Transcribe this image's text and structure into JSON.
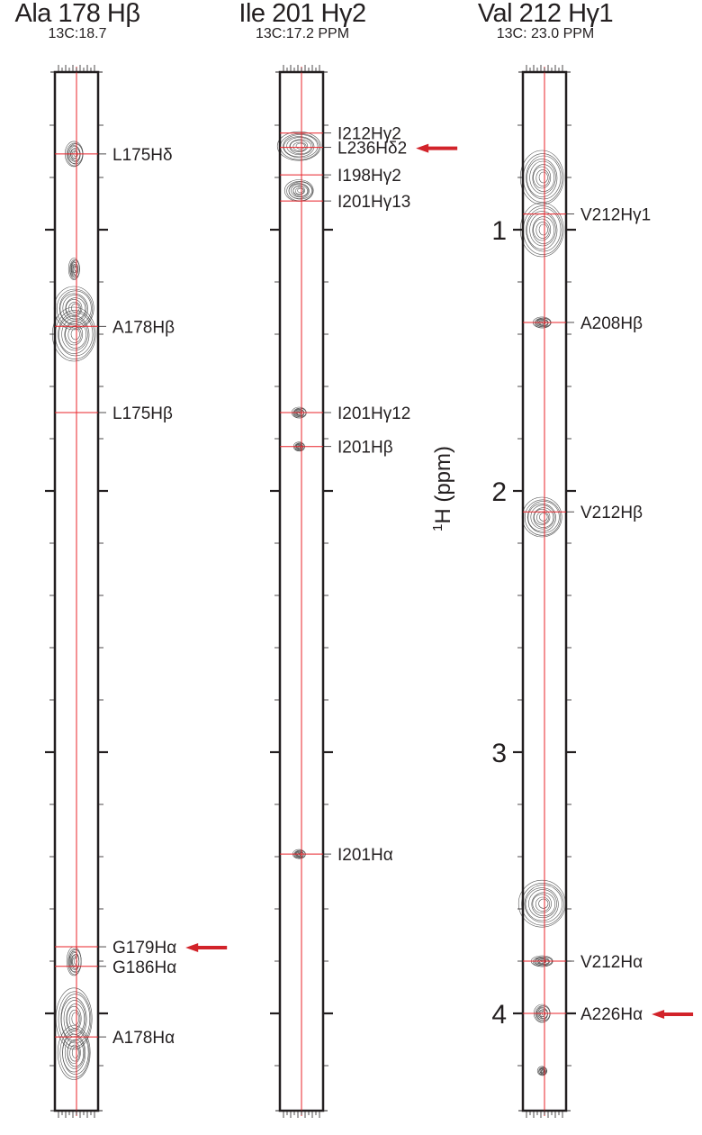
{
  "chart_data": {
    "type": "scatter",
    "ylabel": "1H (ppm)",
    "ylabel_sup": "1",
    "ylabel_main": "H  (ppm)",
    "ylim": [
      0.4,
      4.37
    ],
    "y_inverted": true,
    "y_ticks": [
      "1",
      "2",
      "3",
      "4"
    ],
    "minor_tick_step_ppm": 0.2,
    "colors": {
      "contour": "#555555",
      "reference_line": "#e8232a",
      "arrow": "#d2232a",
      "frame": "#231f20"
    },
    "strips": [
      {
        "title": "Ala 178 Hβ",
        "subtitle": "13C:18.7",
        "peaks": [
          {
            "label": "L175Hδ",
            "ppm": 0.71,
            "arrow": false
          },
          {
            "label": "A178Hβ",
            "ppm": 1.37,
            "arrow": false
          },
          {
            "label": "L175Hβ",
            "ppm": 1.7,
            "arrow": false
          },
          {
            "label": "G179Hα",
            "ppm": 3.745,
            "arrow": true
          },
          {
            "label": "G186Hα",
            "ppm": 3.82,
            "arrow": false
          },
          {
            "label": "A178Hα",
            "ppm": 4.09,
            "arrow": false
          }
        ]
      },
      {
        "title": "Ile 201 Hγ2",
        "subtitle": "13C:17.2 PPM",
        "peaks": [
          {
            "label": "I212Hγ2",
            "ppm": 0.63,
            "arrow": false
          },
          {
            "label": "L236Hδ2",
            "ppm": 0.685,
            "arrow": true
          },
          {
            "label": "I198Hγ2",
            "ppm": 0.79,
            "arrow": false
          },
          {
            "label": "I201Hγ13",
            "ppm": 0.89,
            "arrow": false
          },
          {
            "label": "I201Hγ12",
            "ppm": 1.7,
            "arrow": false
          },
          {
            "label": "I201Hβ",
            "ppm": 1.83,
            "arrow": false
          },
          {
            "label": "I201Hα",
            "ppm": 3.39,
            "arrow": false
          }
        ]
      },
      {
        "title": "Val 212 Hγ1",
        "subtitle": "13C: 23.0 PPM",
        "peaks": [
          {
            "label": "V212Hγ1",
            "ppm": 0.94,
            "arrow": false
          },
          {
            "label": "A208Hβ",
            "ppm": 1.355,
            "arrow": false
          },
          {
            "label": "V212Hβ",
            "ppm": 2.08,
            "arrow": false
          },
          {
            "label": "V212Hα",
            "ppm": 3.8,
            "arrow": false
          },
          {
            "label": "A226Hα",
            "ppm": 4.0,
            "arrow": true
          }
        ]
      }
    ]
  }
}
